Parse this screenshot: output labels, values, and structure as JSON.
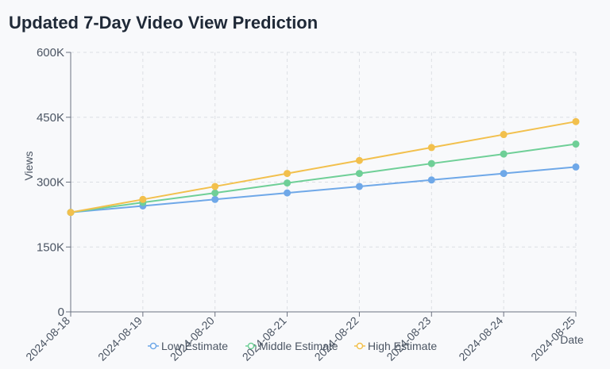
{
  "title": "Updated 7-Day Video View Prediction",
  "chart_data": {
    "type": "line",
    "title": "Updated 7-Day Video View Prediction",
    "xlabel": "Date",
    "ylabel": "Views",
    "categories": [
      "2024-08-18",
      "2024-08-19",
      "2024-08-20",
      "2024-08-21",
      "2024-08-22",
      "2024-08-23",
      "2024-08-24",
      "2024-08-25"
    ],
    "ylim": [
      0,
      600000
    ],
    "yticks": [
      0,
      150000,
      300000,
      450000,
      600000
    ],
    "ytick_labels": [
      "0",
      "150K",
      "300K",
      "450K",
      "600K"
    ],
    "grid": true,
    "legend_position": "bottom",
    "series": [
      {
        "name": "Low Estimate",
        "color": "#6fa8e8",
        "values": [
          230000,
          245000,
          260000,
          275000,
          290000,
          305000,
          320000,
          335000
        ]
      },
      {
        "name": "Middle Estimate",
        "color": "#6fcf97",
        "values": [
          230000,
          253000,
          275000,
          298000,
          320000,
          343000,
          365000,
          388000
        ]
      },
      {
        "name": "High Estimate",
        "color": "#f2c04d",
        "values": [
          230000,
          260000,
          290000,
          320000,
          350000,
          380000,
          410000,
          440000
        ]
      }
    ]
  }
}
